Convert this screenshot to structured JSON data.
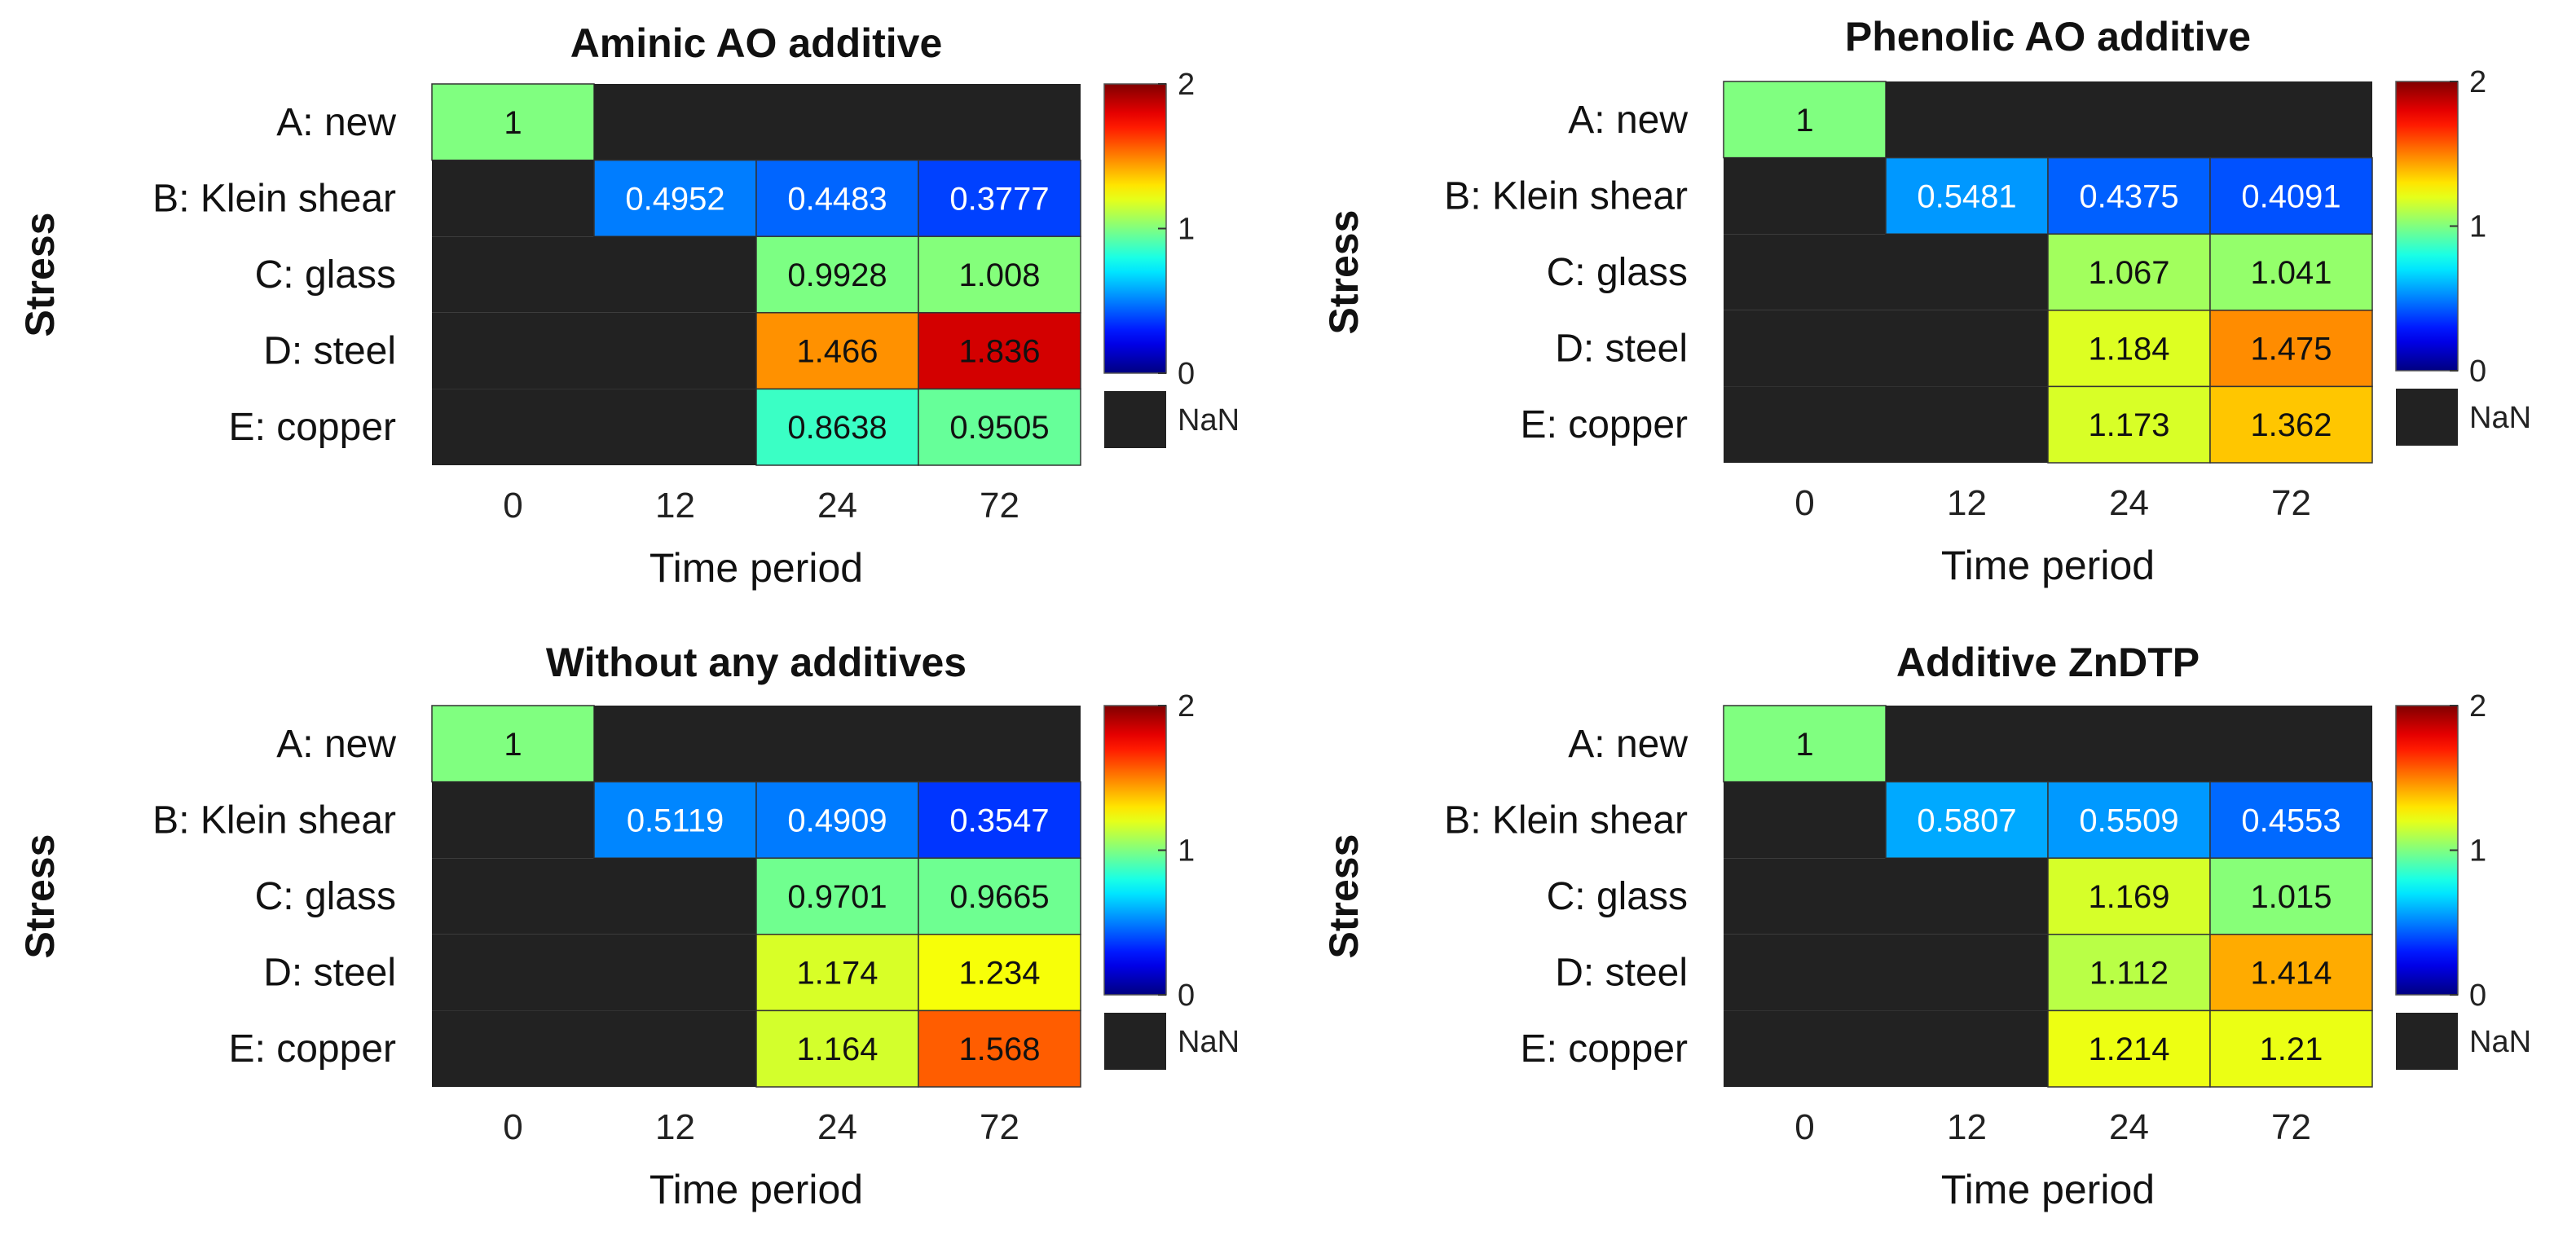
{
  "chart_data": [
    {
      "type": "heatmap",
      "title": "Aminic AO additive",
      "xlabel": "Time period",
      "ylabel": "Stress",
      "columns": [
        "0",
        "12",
        "24",
        "72"
      ],
      "rows": [
        "A: new",
        "B: Klein shear",
        "C: glass",
        "D: steel",
        "E: copper"
      ],
      "values": [
        [
          1,
          null,
          null,
          null
        ],
        [
          null,
          0.4952,
          0.4483,
          0.3777
        ],
        [
          null,
          null,
          0.9928,
          1.008
        ],
        [
          null,
          null,
          1.466,
          1.836
        ],
        [
          null,
          null,
          0.8638,
          0.9505
        ]
      ],
      "labels": [
        [
          "1",
          "",
          "",
          ""
        ],
        [
          "",
          "0.4952",
          "0.4483",
          "0.3777"
        ],
        [
          "",
          "",
          "0.9928",
          "1.008"
        ],
        [
          "",
          "",
          "1.466",
          "1.836"
        ],
        [
          "",
          "",
          "0.8638",
          "0.9505"
        ]
      ],
      "colorbar": {
        "min": 0,
        "max": 2,
        "ticks": [
          "0",
          "1",
          "2"
        ],
        "nan_label": "NaN",
        "colormap": "jet"
      }
    },
    {
      "type": "heatmap",
      "title": "Phenolic AO additive",
      "xlabel": "Time period",
      "ylabel": "Stress",
      "columns": [
        "0",
        "12",
        "24",
        "72"
      ],
      "rows": [
        "A: new",
        "B: Klein shear",
        "C: glass",
        "D: steel",
        "E: copper"
      ],
      "values": [
        [
          1,
          null,
          null,
          null
        ],
        [
          null,
          0.5481,
          0.4375,
          0.4091
        ],
        [
          null,
          null,
          1.067,
          1.041
        ],
        [
          null,
          null,
          1.184,
          1.475
        ],
        [
          null,
          null,
          1.173,
          1.362
        ]
      ],
      "labels": [
        [
          "1",
          "",
          "",
          ""
        ],
        [
          "",
          "0.5481",
          "0.4375",
          "0.4091"
        ],
        [
          "",
          "",
          "1.067",
          "1.041"
        ],
        [
          "",
          "",
          "1.184",
          "1.475"
        ],
        [
          "",
          "",
          "1.173",
          "1.362"
        ]
      ],
      "colorbar": {
        "min": 0,
        "max": 2,
        "ticks": [
          "0",
          "1",
          "2"
        ],
        "nan_label": "NaN",
        "colormap": "jet"
      }
    },
    {
      "type": "heatmap",
      "title": "Without any additives",
      "xlabel": "Time period",
      "ylabel": "Stress",
      "columns": [
        "0",
        "12",
        "24",
        "72"
      ],
      "rows": [
        "A: new",
        "B: Klein shear",
        "C: glass",
        "D: steel",
        "E: copper"
      ],
      "values": [
        [
          1,
          null,
          null,
          null
        ],
        [
          null,
          0.5119,
          0.4909,
          0.3547
        ],
        [
          null,
          null,
          0.9701,
          0.9665
        ],
        [
          null,
          null,
          1.174,
          1.234
        ],
        [
          null,
          null,
          1.164,
          1.568
        ]
      ],
      "labels": [
        [
          "1",
          "",
          "",
          ""
        ],
        [
          "",
          "0.5119",
          "0.4909",
          "0.3547"
        ],
        [
          "",
          "",
          "0.9701",
          "0.9665"
        ],
        [
          "",
          "",
          "1.174",
          "1.234"
        ],
        [
          "",
          "",
          "1.164",
          "1.568"
        ]
      ],
      "colorbar": {
        "min": 0,
        "max": 2,
        "ticks": [
          "0",
          "1",
          "2"
        ],
        "nan_label": "NaN",
        "colormap": "jet"
      }
    },
    {
      "type": "heatmap",
      "title": "Additive ZnDTP",
      "xlabel": "Time period",
      "ylabel": "Stress",
      "columns": [
        "0",
        "12",
        "24",
        "72"
      ],
      "rows": [
        "A: new",
        "B: Klein shear",
        "C: glass",
        "D: steel",
        "E: copper"
      ],
      "values": [
        [
          1,
          null,
          null,
          null
        ],
        [
          null,
          0.5807,
          0.5509,
          0.4553
        ],
        [
          null,
          null,
          1.169,
          1.015
        ],
        [
          null,
          null,
          1.112,
          1.414
        ],
        [
          null,
          null,
          1.214,
          1.21
        ]
      ],
      "labels": [
        [
          "1",
          "",
          "",
          ""
        ],
        [
          "",
          "0.5807",
          "0.5509",
          "0.4553"
        ],
        [
          "",
          "",
          "1.169",
          "1.015"
        ],
        [
          "",
          "",
          "1.112",
          "1.414"
        ],
        [
          "",
          "",
          "1.214",
          "1.21"
        ]
      ],
      "colorbar": {
        "min": 0,
        "max": 2,
        "ticks": [
          "0",
          "1",
          "2"
        ],
        "nan_label": "NaN",
        "colormap": "jet"
      }
    }
  ],
  "colors": {
    "nan": "#222222",
    "background": "#ffffff",
    "border": "#333333"
  }
}
